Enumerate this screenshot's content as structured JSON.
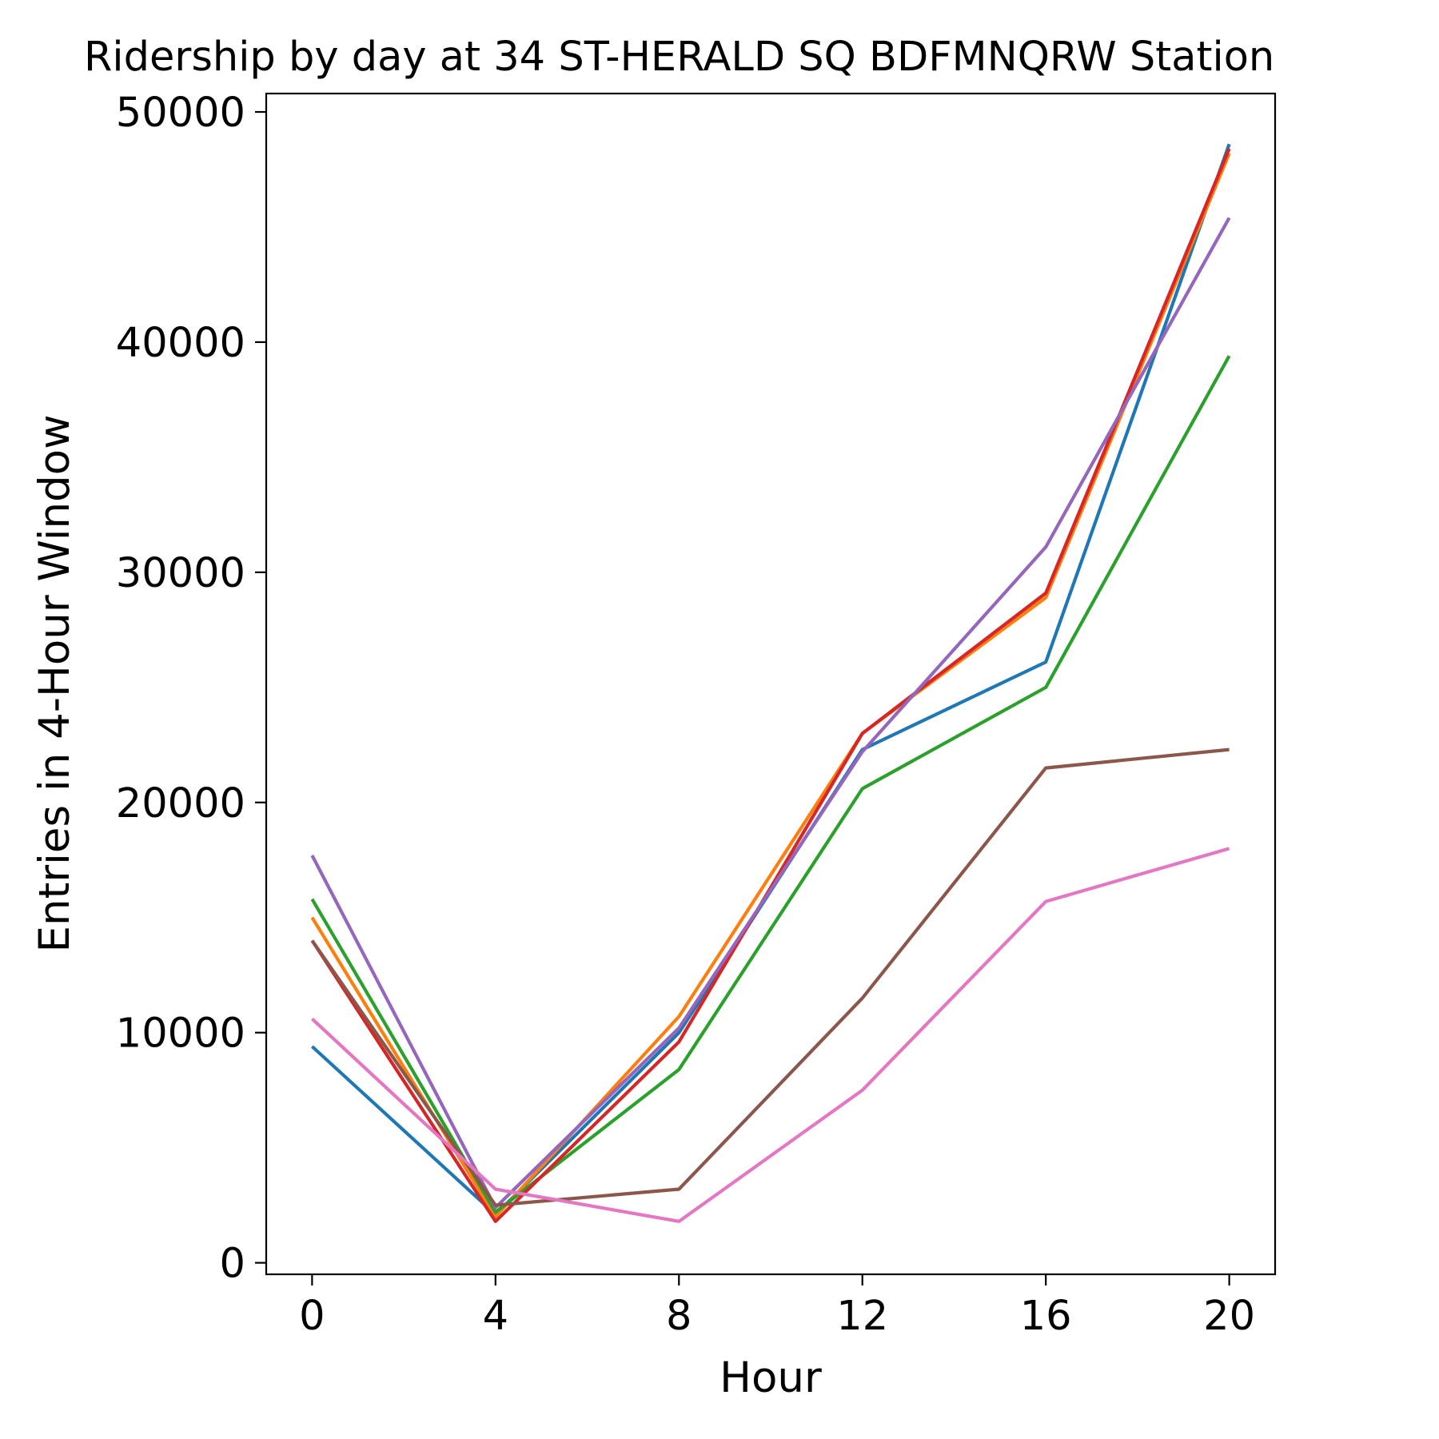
{
  "chart_data": {
    "type": "line",
    "title": "Ridership by day at 34 ST-HERALD SQ BDFMNQRW Station",
    "xlabel": "Hour",
    "ylabel": "Entries in 4-Hour Window",
    "x": [
      0,
      4,
      8,
      12,
      16,
      20
    ],
    "xticks": [
      "0",
      "4",
      "8",
      "12",
      "16",
      "20"
    ],
    "yticks": [
      "0",
      "10000",
      "20000",
      "30000",
      "40000",
      "50000"
    ],
    "xlim": [
      -1,
      21
    ],
    "ylim": [
      -500,
      50800
    ],
    "grid": false,
    "legend": "none",
    "series": [
      {
        "color": "#1f77b4",
        "values": [
          9400,
          2100,
          10000,
          22300,
          26100,
          48600
        ]
      },
      {
        "color": "#ff7f0e",
        "values": [
          15000,
          2000,
          10700,
          23000,
          28900,
          48200
        ]
      },
      {
        "color": "#2ca02c",
        "values": [
          15800,
          2200,
          8400,
          20600,
          25000,
          39400
        ]
      },
      {
        "color": "#d62728",
        "values": [
          14000,
          1800,
          9600,
          23000,
          29100,
          48400
        ]
      },
      {
        "color": "#9467bd",
        "values": [
          17700,
          2400,
          10200,
          22200,
          31100,
          45400
        ]
      },
      {
        "color": "#8c564b",
        "values": [
          14000,
          2500,
          3200,
          11500,
          21500,
          22300
        ]
      },
      {
        "color": "#e377c2",
        "values": [
          10600,
          3200,
          1800,
          7500,
          15700,
          18000
        ]
      }
    ]
  }
}
